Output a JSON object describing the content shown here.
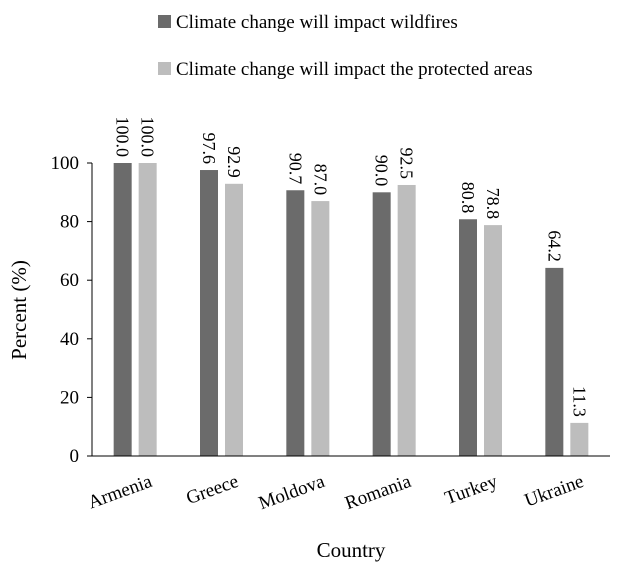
{
  "chart_data": {
    "type": "bar",
    "categories": [
      "Armenia",
      "Greece",
      "Moldova",
      "Romania",
      "Turkey",
      "Ukraine"
    ],
    "series": [
      {
        "name": "Climate change will impact wildfires",
        "color": "#6b6b6b",
        "values": [
          100.0,
          97.6,
          90.7,
          90.0,
          80.8,
          64.2
        ],
        "labels": [
          "100.0",
          "97.6",
          "90.7",
          "90.0",
          "80.8",
          "64.2"
        ]
      },
      {
        "name": "Climate change will impact the protected areas",
        "color": "#bdbdbd",
        "values": [
          100.0,
          92.9,
          87.0,
          92.5,
          78.8,
          11.3
        ],
        "labels": [
          "100.0",
          "92.9",
          "87.0",
          "92.5",
          "78.8",
          "11.3"
        ]
      }
    ],
    "xlabel": "Country",
    "ylabel": "Percent (%)",
    "ylim": [
      0,
      100
    ],
    "yticks": [
      "0",
      "20",
      "40",
      "60",
      "80",
      "100"
    ],
    "grid": false,
    "legend_position": "top"
  }
}
